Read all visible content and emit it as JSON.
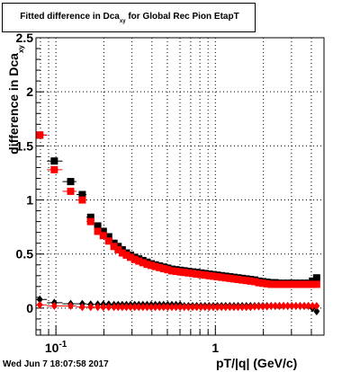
{
  "title": {
    "prefix": "Fitted difference in Dca",
    "subscript": "xy",
    "suffix": " for Global Rec Pion EtapT"
  },
  "timestamp": "Wed Jun  7 18:07:58 2017",
  "chart_data": {
    "type": "scatter",
    "title": "Fitted difference in Dca_xy for Global Rec Pion EtapT",
    "xlabel": "pT/|q| (GeV/c)",
    "ylabel": "difference in Dca_xy",
    "ylabel_main": "difference in Dca",
    "ylabel_sub": "xy",
    "xscale": "log",
    "xlim": [
      0.075,
      4.8
    ],
    "ylim": [
      -0.25,
      2.5
    ],
    "grid": true,
    "y_ticks": [
      {
        "value": 0,
        "label": "0"
      },
      {
        "value": 0.5,
        "label": "0.5"
      },
      {
        "value": 1,
        "label": "1"
      },
      {
        "value": 1.5,
        "label": "1.5"
      },
      {
        "value": 2,
        "label": "2"
      },
      {
        "value": 2.5,
        "label": "2.5"
      }
    ],
    "x_ticks": [
      {
        "value": 0.1,
        "label": "10",
        "exponent": "-1"
      },
      {
        "value": 1,
        "label": "1"
      }
    ],
    "series": [
      {
        "color": "#000000",
        "marker": "square",
        "x": [
          0.0792,
          0.0977,
          0.1237,
          0.1463,
          0.1652,
          0.1829,
          0.1982,
          0.2143,
          0.2313,
          0.2456,
          0.2607,
          0.2767,
          0.2937,
          0.3118,
          0.3309,
          0.3512,
          0.3729,
          0.3958,
          0.4202,
          0.446,
          0.4735,
          0.5026,
          0.5336,
          0.5665,
          0.6013,
          0.6384,
          0.6777,
          0.7194,
          0.7637,
          0.8107,
          0.8606,
          0.9135,
          0.9698,
          1.0293,
          1.0928,
          1.16,
          1.2315,
          1.307,
          1.3875,
          1.4729,
          1.5636,
          1.6597,
          1.7619,
          1.8703,
          1.9855,
          2.1077,
          2.2374,
          2.3751,
          2.5213,
          2.6765,
          2.8413,
          3.0161,
          3.2017,
          3.3988,
          3.6081,
          3.8302,
          4.0658,
          4.3161
        ],
        "values": [
          1.6,
          1.36,
          1.17,
          1.05,
          0.84,
          0.76,
          0.71,
          0.66,
          0.6,
          0.57,
          0.54,
          0.51,
          0.49,
          0.47,
          0.455,
          0.44,
          0.425,
          0.41,
          0.4,
          0.39,
          0.38,
          0.37,
          0.36,
          0.355,
          0.35,
          0.345,
          0.34,
          0.335,
          0.33,
          0.325,
          0.32,
          0.315,
          0.31,
          0.305,
          0.3,
          0.295,
          0.29,
          0.285,
          0.28,
          0.275,
          0.27,
          0.265,
          0.26,
          0.25,
          0.245,
          0.24,
          0.235,
          0.235,
          0.23,
          0.23,
          0.23,
          0.23,
          0.23,
          0.23,
          0.23,
          0.23,
          0.25,
          0.28
        ]
      },
      {
        "color": "#ff0000",
        "marker": "square",
        "x": [
          0.0792,
          0.0977,
          0.1237,
          0.1463,
          0.1652,
          0.1829,
          0.1982,
          0.2143,
          0.2313,
          0.2456,
          0.2607,
          0.2767,
          0.2937,
          0.3118,
          0.3309,
          0.3512,
          0.3729,
          0.3958,
          0.4202,
          0.446,
          0.4735,
          0.5026,
          0.5336,
          0.5665,
          0.6013,
          0.6384,
          0.6777,
          0.7194,
          0.7637,
          0.8107,
          0.8606,
          0.9135,
          0.9698,
          1.0293,
          1.0928,
          1.16,
          1.2315,
          1.307,
          1.3875,
          1.4729,
          1.5636,
          1.6597,
          1.7619,
          1.8703,
          1.9855,
          2.1077,
          2.2374,
          2.3751,
          2.5213,
          2.6765,
          2.8413,
          3.0161,
          3.2017,
          3.3988,
          3.6081,
          3.8302,
          4.0658,
          4.3161
        ],
        "values": [
          1.6,
          1.28,
          1.08,
          1.0,
          0.8,
          0.71,
          0.67,
          0.62,
          0.57,
          0.54,
          0.51,
          0.49,
          0.47,
          0.45,
          0.435,
          0.42,
          0.405,
          0.395,
          0.385,
          0.375,
          0.365,
          0.355,
          0.345,
          0.34,
          0.335,
          0.33,
          0.325,
          0.32,
          0.315,
          0.31,
          0.305,
          0.3,
          0.295,
          0.29,
          0.285,
          0.28,
          0.275,
          0.27,
          0.265,
          0.26,
          0.255,
          0.25,
          0.245,
          0.235,
          0.23,
          0.225,
          0.22,
          0.22,
          0.22,
          0.22,
          0.22,
          0.22,
          0.22,
          0.22,
          0.22,
          0.22,
          0.22,
          0.22
        ]
      },
      {
        "color": "#000000",
        "marker": "diamond",
        "x": [
          0.0792,
          0.0977,
          0.1237,
          0.1463,
          0.1652,
          0.1829,
          0.1982,
          0.2143,
          0.2313,
          0.2456,
          0.2607,
          0.2767,
          0.2937,
          0.3118,
          0.3309,
          0.3512,
          0.3729,
          0.3958,
          0.4202,
          0.446,
          0.4735,
          0.5026,
          0.5336,
          0.5665,
          0.6013,
          0.6384,
          0.6777,
          0.7194,
          0.7637,
          0.8107,
          0.8606,
          0.9135,
          0.9698,
          1.0293,
          1.0928,
          1.16,
          1.2315,
          1.307,
          1.3875,
          1.4729,
          1.5636,
          1.6597,
          1.7619,
          1.8703,
          1.9855,
          2.1077,
          2.2374,
          2.3751,
          2.5213,
          2.6765,
          2.8413,
          3.0161,
          3.2017,
          3.3988,
          3.6081,
          3.8302,
          4.0658,
          4.3161
        ],
        "values": [
          0.08,
          0.05,
          0.04,
          0.04,
          0.035,
          0.035,
          0.035,
          0.035,
          0.03,
          0.03,
          0.03,
          0.03,
          0.03,
          0.03,
          0.03,
          0.03,
          0.03,
          0.03,
          0.03,
          0.03,
          0.03,
          0.03,
          0.03,
          0.03,
          0.03,
          0.02,
          0.02,
          0.02,
          0.02,
          0.02,
          0.02,
          0.02,
          0.02,
          0.02,
          0.02,
          0.02,
          0.02,
          0.02,
          0.02,
          0.02,
          0.02,
          0.02,
          0.02,
          0.02,
          0.02,
          0.02,
          0.02,
          0.02,
          0.02,
          0.02,
          0.02,
          0.02,
          0.02,
          0.02,
          0.02,
          0.02,
          0.0,
          -0.03
        ]
      },
      {
        "color": "#ff0000",
        "marker": "diamond",
        "x": [
          0.0792,
          0.0977,
          0.1237,
          0.1463,
          0.1652,
          0.1829,
          0.1982,
          0.2143,
          0.2313,
          0.2456,
          0.2607,
          0.2767,
          0.2937,
          0.3118,
          0.3309,
          0.3512,
          0.3729,
          0.3958,
          0.4202,
          0.446,
          0.4735,
          0.5026,
          0.5336,
          0.5665,
          0.6013,
          0.6384,
          0.6777,
          0.7194,
          0.7637,
          0.8107,
          0.8606,
          0.9135,
          0.9698,
          1.0293,
          1.0928,
          1.16,
          1.2315,
          1.307,
          1.3875,
          1.4729,
          1.5636,
          1.6597,
          1.7619,
          1.8703,
          1.9855,
          2.1077,
          2.2374,
          2.3751,
          2.5213,
          2.6765,
          2.8413,
          3.0161,
          3.2017,
          3.3988,
          3.6081,
          3.8302,
          4.0658,
          4.3161
        ],
        "values": [
          0.03,
          0.02,
          0.02,
          0.01,
          0.01,
          0.01,
          0.01,
          0.01,
          0.01,
          0.01,
          0.01,
          0.01,
          0.01,
          0.01,
          0.01,
          0.01,
          0.01,
          0.01,
          0.01,
          0.01,
          0.01,
          0.01,
          0.01,
          0.01,
          0.01,
          0.01,
          0.01,
          0.01,
          0.01,
          0.01,
          0.01,
          0.01,
          0.01,
          0.01,
          0.01,
          0.01,
          0.01,
          0.01,
          0.01,
          0.01,
          0.01,
          0.01,
          0.015,
          0.015,
          0.015,
          0.015,
          0.02,
          0.02,
          0.02,
          0.02,
          0.02,
          0.02,
          0.02,
          0.02,
          0.02,
          0.02,
          0.02,
          0.02
        ]
      }
    ]
  }
}
